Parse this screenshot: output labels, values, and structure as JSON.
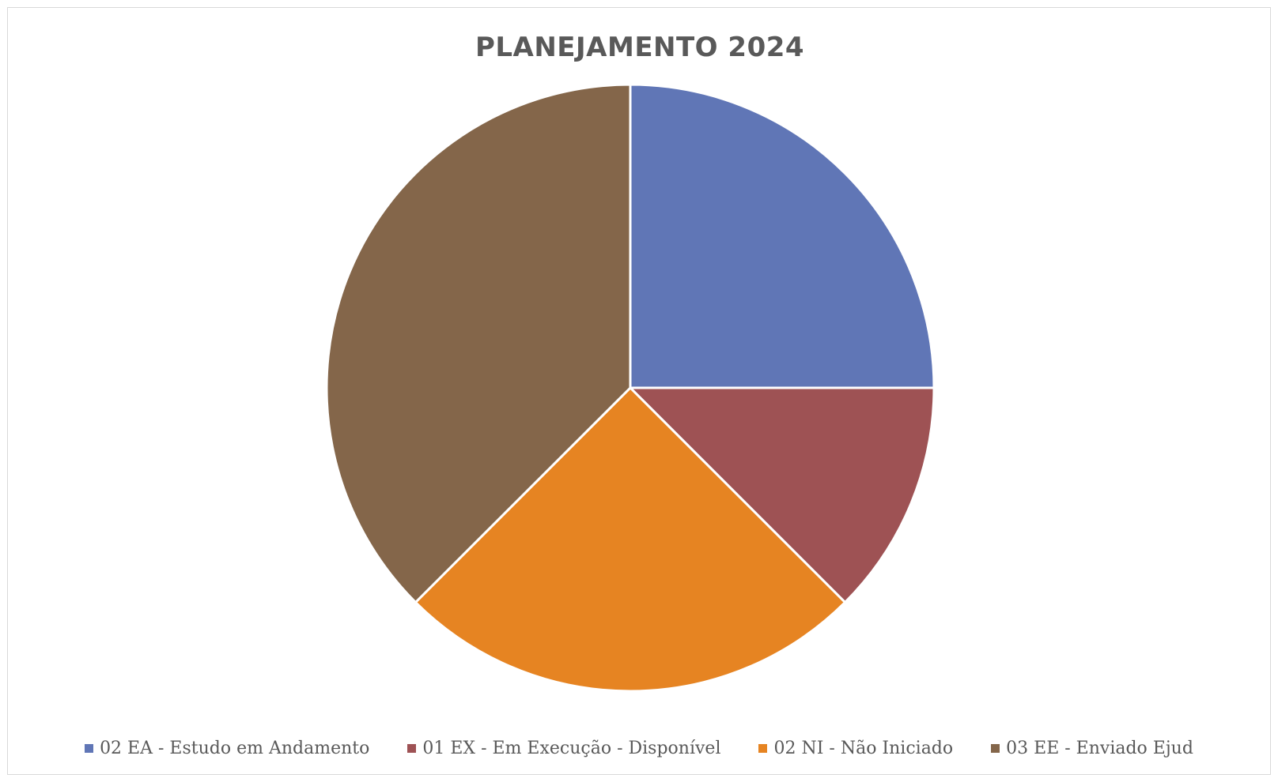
{
  "chart_data": {
    "type": "pie",
    "title": "PLANEJAMENTO 2024",
    "categories": [
      "02 EA - Estudo em Andamento",
      "01 EX - Em Execução - Disponível",
      "02 NI - Não Iniciado",
      "03 EE - Enviado Ejud"
    ],
    "values": [
      25,
      12.5,
      25,
      37.5
    ],
    "colors": [
      "#6076b6",
      "#9e5254",
      "#e68422",
      "#84664a"
    ],
    "legend_position": "bottom"
  }
}
